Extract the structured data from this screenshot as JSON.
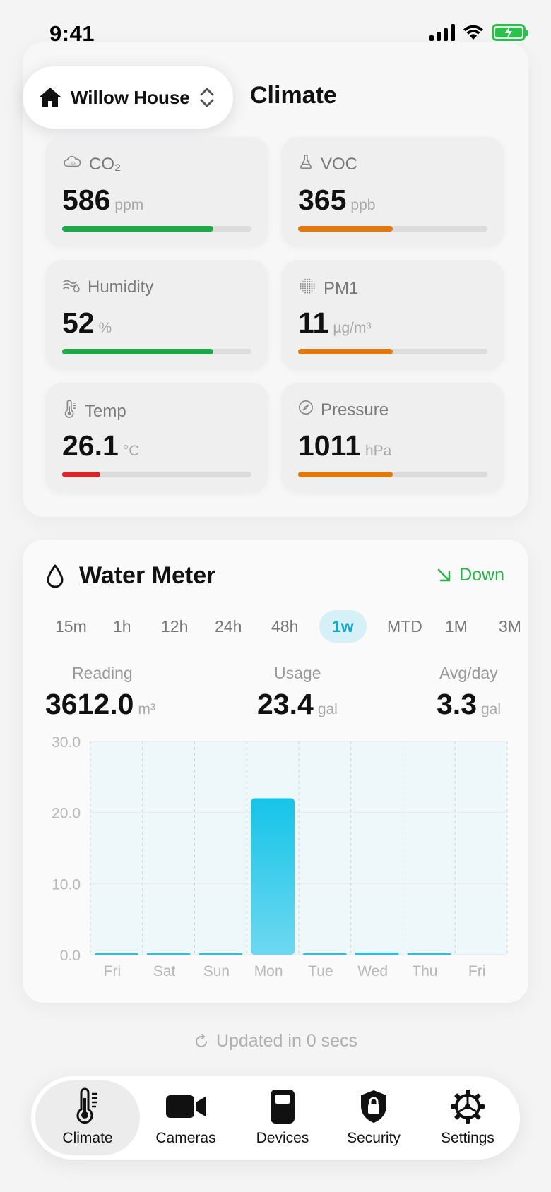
{
  "status": {
    "time": "9:41"
  },
  "header": {
    "house_name": "Willow House",
    "title": "Climate"
  },
  "metrics": [
    {
      "label": "CO₂",
      "value": "586",
      "unit": "ppm",
      "level": 0.8,
      "color": "#1ea84a",
      "icon": "co2-cloud-icon"
    },
    {
      "label": "VOC",
      "value": "365",
      "unit": "ppb",
      "level": 0.5,
      "color": "#e07a10",
      "icon": "flask-icon"
    },
    {
      "label": "Humidity",
      "value": "52",
      "unit": "%",
      "level": 0.8,
      "color": "#1ea84a",
      "icon": "humidity-icon"
    },
    {
      "label": "PM1",
      "value": "11",
      "unit": "µg/m³",
      "level": 0.5,
      "color": "#e07a10",
      "icon": "particles-icon"
    },
    {
      "label": "Temp",
      "value": "26.1",
      "unit": "°C",
      "level": 0.2,
      "color": "#d8262d",
      "icon": "thermometer-icon"
    },
    {
      "label": "Pressure",
      "value": "1011",
      "unit": "hPa",
      "level": 0.5,
      "color": "#e07a10",
      "icon": "gauge-icon"
    }
  ],
  "water": {
    "title": "Water Meter",
    "trend": "Down",
    "trend_color": "#2ab24a",
    "ranges": [
      "15m",
      "1h",
      "12h",
      "24h",
      "48h",
      "1w",
      "MTD",
      "1M",
      "3M"
    ],
    "active_range": "1w",
    "stats": [
      {
        "label": "Reading",
        "value": "3612.0",
        "unit": "m³"
      },
      {
        "label": "Usage",
        "value": "23.4",
        "unit": "gal"
      },
      {
        "label": "Avg/day",
        "value": "3.3",
        "unit": "gal"
      }
    ]
  },
  "chart_data": {
    "type": "bar",
    "categories": [
      "Fri",
      "Sat",
      "Sun",
      "Mon",
      "Tue",
      "Wed",
      "Thu",
      "Fri"
    ],
    "values": [
      0.2,
      0.1,
      0.2,
      22,
      0.2,
      0.3,
      0.1,
      0
    ],
    "yticks": [
      "0.0",
      "10.0",
      "20.0",
      "30.0"
    ],
    "ylim": [
      0,
      30
    ],
    "grid": true,
    "bar_color": "#1ec3e6"
  },
  "footer": {
    "updated": "Updated in 0 secs"
  },
  "tabs": [
    {
      "label": "Climate",
      "icon": "thermometer-icon",
      "active": true
    },
    {
      "label": "Cameras",
      "icon": "video-camera-icon",
      "active": false
    },
    {
      "label": "Devices",
      "icon": "device-icon",
      "active": false
    },
    {
      "label": "Security",
      "icon": "shield-lock-icon",
      "active": false
    },
    {
      "label": "Settings",
      "icon": "gear-icon",
      "active": false
    }
  ]
}
